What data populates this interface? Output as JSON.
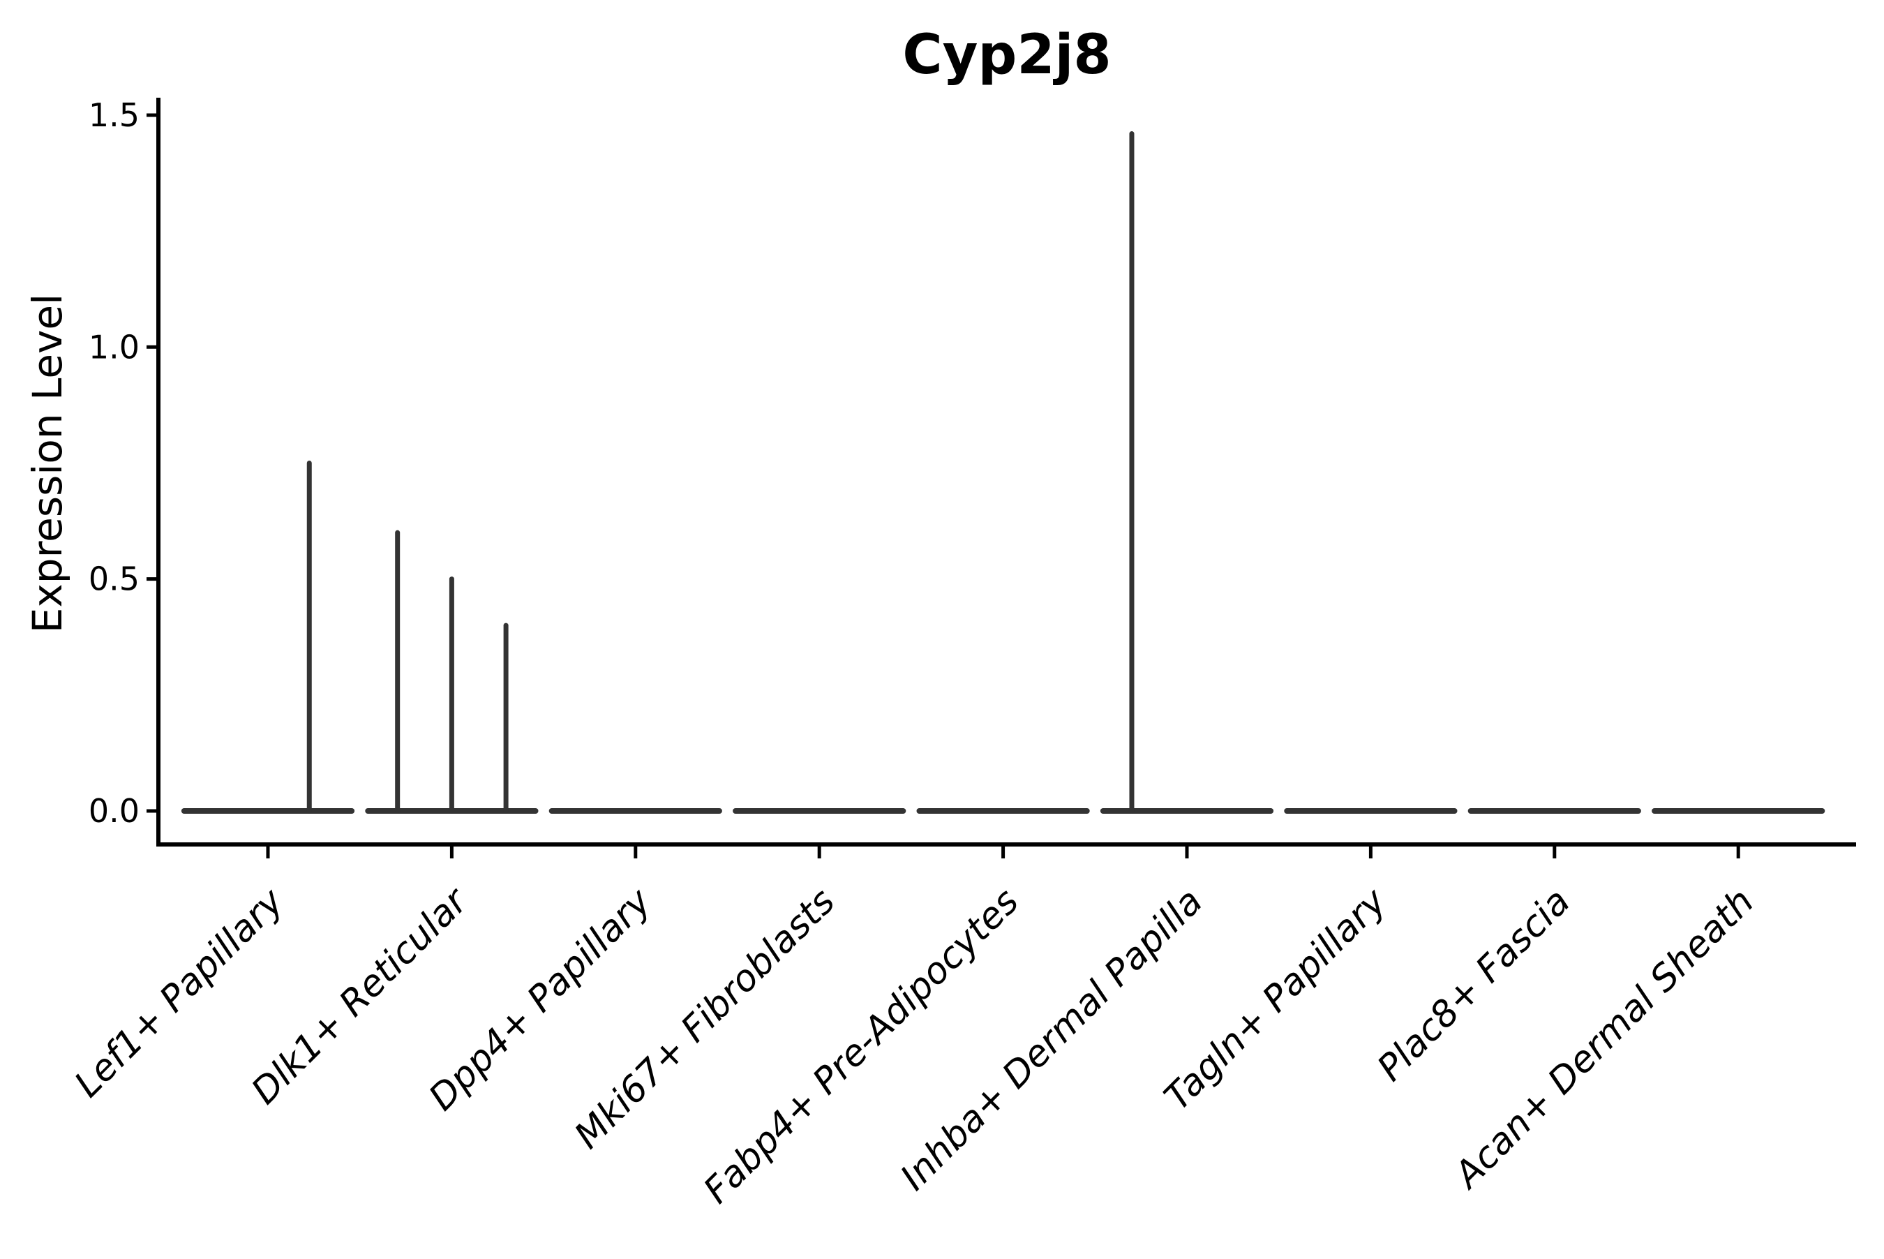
{
  "title": "Cyp2j8",
  "y_axis": {
    "label": "Expression Level",
    "tick_labels": [
      "0.0",
      "0.5",
      "1.0",
      "1.5"
    ],
    "tick_values": [
      0.0,
      0.5,
      1.0,
      1.5
    ],
    "range": [
      0.0,
      1.5
    ]
  },
  "x_axis": {
    "categories": [
      "Lef1+ Papillary",
      "Dlk1+ Reticular",
      "Dpp4+ Papillary",
      "Mki67+ Fibroblasts",
      "Fabp4+ Pre-Adipocytes",
      "Inhba+ Dermal Papilla",
      "Tagln+ Papillary",
      "Plac8+ Fascia",
      "Acan+ Dermal Sheath"
    ]
  },
  "chart_data": {
    "type": "violin",
    "title": "Cyp2j8",
    "xlabel": "",
    "ylabel": "Expression Level",
    "ylim": [
      0.0,
      1.5
    ],
    "yticks": [
      0.0,
      0.5,
      1.0,
      1.5
    ],
    "ytick_labels": [
      "0.0",
      "0.5",
      "1.0",
      "1.5"
    ],
    "grid": false,
    "legend": null,
    "categories": [
      "Lef1+ Papillary",
      "Dlk1+ Reticular",
      "Dpp4+ Papillary",
      "Mki67+ Fibroblasts",
      "Fabp4+ Pre-Adipocytes",
      "Inhba+ Dermal Papilla",
      "Tagln+ Papillary",
      "Plac8+ Fascia",
      "Acan+ Dermal Sheath"
    ],
    "violins": [
      {
        "name": "Lef1+ Papillary",
        "baseline_value": 0.0,
        "baseline_halfwidth": 0.456,
        "spikes": [
          {
            "offset": 0.225,
            "value": 0.75
          }
        ]
      },
      {
        "name": "Dlk1+ Reticular",
        "baseline_value": 0.0,
        "baseline_halfwidth": 0.456,
        "spikes": [
          {
            "offset": -0.295,
            "value": 0.6
          },
          {
            "offset": 0.0,
            "value": 0.5
          },
          {
            "offset": 0.295,
            "value": 0.4
          }
        ]
      },
      {
        "name": "Dpp4+ Papillary",
        "baseline_value": 0.0,
        "baseline_halfwidth": 0.456,
        "spikes": []
      },
      {
        "name": "Mki67+ Fibroblasts",
        "baseline_value": 0.0,
        "baseline_halfwidth": 0.456,
        "spikes": []
      },
      {
        "name": "Fabp4+ Pre-Adipocytes",
        "baseline_value": 0.0,
        "baseline_halfwidth": 0.456,
        "spikes": []
      },
      {
        "name": "Inhba+ Dermal Papilla",
        "baseline_value": 0.0,
        "baseline_halfwidth": 0.456,
        "spikes": [
          {
            "offset": -0.3,
            "value": 1.46
          }
        ]
      },
      {
        "name": "Tagln+ Papillary",
        "baseline_value": 0.0,
        "baseline_halfwidth": 0.456,
        "spikes": []
      },
      {
        "name": "Plac8+ Fascia",
        "baseline_value": 0.0,
        "baseline_halfwidth": 0.456,
        "spikes": []
      },
      {
        "name": "Acan+ Dermal Sheath",
        "baseline_value": 0.0,
        "baseline_halfwidth": 0.456,
        "spikes": []
      }
    ],
    "colors": {
      "violin_line": "#333333",
      "spine": "#000000",
      "text": "#000000",
      "background": "#ffffff"
    }
  }
}
